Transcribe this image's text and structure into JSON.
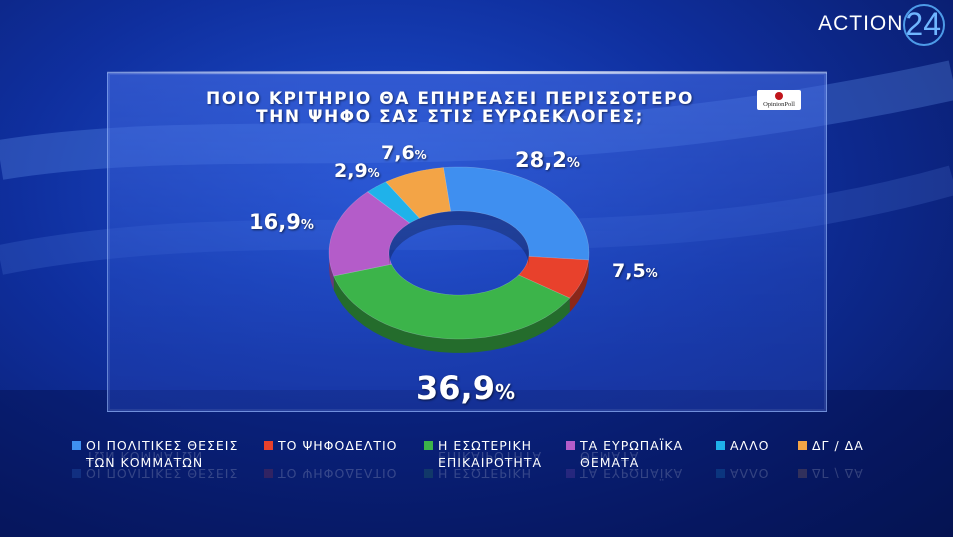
{
  "brand": {
    "text": "ACTION",
    "number": "24"
  },
  "badge": {
    "text": "OpinionPoll"
  },
  "chart_data": {
    "type": "pie",
    "title_lines": [
      "ΠΟΙΟ ΚΡΙΤΗΡΙΟ ΘΑ ΕΠΗΡΕΑΣΕΙ ΠΕΡΙΣΣΟΤΕΡΟ",
      "ΤΗΝ ΨΗΦΟ ΣΑΣ ΣΤΙΣ ΕΥΡΩΕΚΛΟΓΕΣ;"
    ],
    "slices": [
      {
        "label_lines": [
          "ΟΙ ΠΟΛΙΤΙΚΕΣ ΘΕΣΕΙΣ",
          "ΤΩΝ ΚΟΜΜΑΤΩΝ"
        ],
        "value": 28.2,
        "display": "28,2",
        "color": "#3f8ff0"
      },
      {
        "label_lines": [
          "ΤΟ ΨΗΦΟΔΕΛΤΙΟ"
        ],
        "value": 7.5,
        "display": "7,5",
        "color": "#e8412c"
      },
      {
        "label_lines": [
          "Η ΕΣΩΤΕΡΙΚΗ",
          "ΕΠΙΚΑΙΡΟΤΗΤΑ"
        ],
        "value": 36.9,
        "display": "36,9",
        "color": "#3cb44a"
      },
      {
        "label_lines": [
          "ΤΑ ΕΥΡΩΠΑΪΚΑ",
          "ΘΕΜΑΤΑ"
        ],
        "value": 16.9,
        "display": "16,9",
        "color": "#b45cc9"
      },
      {
        "label_lines": [
          "ΑΛΛΟ"
        ],
        "value": 2.9,
        "display": "2,9",
        "color": "#1fb2ea"
      },
      {
        "label_lines": [
          "ΔΓ / ΔΑ"
        ],
        "value": 7.6,
        "display": "7,6",
        "color": "#f3a446"
      }
    ],
    "value_suffix": "%",
    "legend_position": "bottom"
  }
}
